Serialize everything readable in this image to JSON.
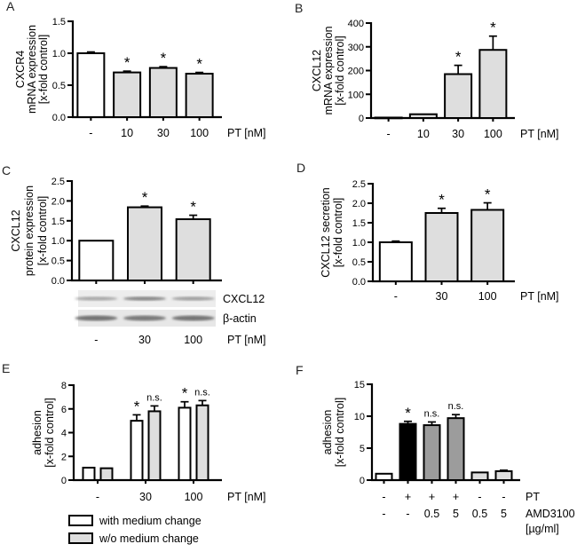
{
  "figure": {
    "panels": [
      {
        "letter": "A"
      },
      {
        "letter": "B"
      },
      {
        "letter": "C"
      },
      {
        "letter": "D"
      },
      {
        "letter": "E"
      },
      {
        "letter": "F"
      }
    ]
  },
  "colors": {
    "bar_white": "#ffffff",
    "bar_lightgray": "#dedede",
    "bar_midgray": "#9c9c9c",
    "bar_black": "#000000",
    "axis": "#000000"
  },
  "chart_data": [
    {
      "type": "bar",
      "panel": "A",
      "ylabel_lines": [
        "CXCR4",
        "mRNA expression",
        "[x-fold control]"
      ],
      "ylim": [
        0,
        1.5
      ],
      "yticks": [
        0,
        0.5,
        1.0,
        1.5
      ],
      "ytick_labels": [
        "0.0",
        "0.5",
        "1.0",
        "1.5"
      ],
      "categories": [
        "-",
        "10",
        "30",
        "100"
      ],
      "values": [
        1.0,
        0.7,
        0.77,
        0.68
      ],
      "errors": [
        0.02,
        0.02,
        0.02,
        0.02
      ],
      "colors": [
        "#ffffff",
        "#dedede",
        "#dedede",
        "#dedede"
      ],
      "annotations": [
        "",
        "*",
        "*",
        "*"
      ],
      "xlabel": "PT [nM]"
    },
    {
      "type": "bar",
      "panel": "B",
      "ylabel_lines": [
        "CXCL12",
        "mRNA expression",
        "[x-fold control]"
      ],
      "ylim": [
        0,
        400
      ],
      "yticks": [
        0,
        100,
        200,
        300,
        400
      ],
      "ytick_labels": [
        "0",
        "100",
        "200",
        "300",
        "400"
      ],
      "categories": [
        "-",
        "10",
        "30",
        "100"
      ],
      "values": [
        2,
        16,
        185,
        287
      ],
      "errors": [
        0,
        0,
        37,
        58
      ],
      "colors": [
        "#dedede",
        "#dedede",
        "#dedede",
        "#dedede"
      ],
      "annotations": [
        "",
        "",
        "*",
        "*"
      ],
      "xlabel": "PT [nM]"
    },
    {
      "type": "bar",
      "panel": "C",
      "ylabel_lines": [
        "CXCL12",
        "protein expression",
        "[x-fold control]"
      ],
      "ylim": [
        0,
        2.5
      ],
      "yticks": [
        0,
        0.5,
        1.0,
        1.5,
        2.0,
        2.5
      ],
      "ytick_labels": [
        "0.0",
        "0.5",
        "1.0",
        "1.5",
        "2.0",
        "2.5"
      ],
      "categories": [
        "-",
        "30",
        "100"
      ],
      "values": [
        1.0,
        1.84,
        1.54
      ],
      "errors": [
        0,
        0.03,
        0.1
      ],
      "colors": [
        "#ffffff",
        "#dedede",
        "#dedede"
      ],
      "annotations": [
        "",
        "*",
        "*"
      ],
      "xlabel": "PT [nM]",
      "blot": {
        "lanes": [
          "-",
          "30",
          "100"
        ],
        "rows": [
          {
            "label": "CXCL12",
            "band_intensity": [
              0.4,
              0.6,
              0.45
            ]
          },
          {
            "label": "β-actin",
            "band_intensity": [
              0.72,
              0.68,
              0.7
            ]
          }
        ]
      }
    },
    {
      "type": "bar",
      "panel": "D",
      "ylabel_lines": [
        "CXCL12 secretion",
        "[x-fold control]"
      ],
      "ylim": [
        0,
        2.5
      ],
      "yticks": [
        0,
        0.5,
        1.0,
        1.5,
        2.0,
        2.5
      ],
      "ytick_labels": [
        "0.0",
        "0.5",
        "1.0",
        "1.5",
        "2.0",
        "2.5"
      ],
      "categories": [
        "-",
        "30",
        "100"
      ],
      "values": [
        1.0,
        1.75,
        1.83
      ],
      "errors": [
        0.03,
        0.12,
        0.18
      ],
      "colors": [
        "#ffffff",
        "#dedede",
        "#dedede"
      ],
      "annotations": [
        "",
        "*",
        "*"
      ],
      "xlabel": "PT [nM]"
    },
    {
      "type": "grouped_bar",
      "panel": "E",
      "ylabel_lines": [
        "adhesion",
        "[x-fold control]"
      ],
      "ylim": [
        0,
        8
      ],
      "yticks": [
        0,
        2,
        4,
        6,
        8
      ],
      "ytick_labels": [
        "0",
        "2",
        "4",
        "6",
        "8"
      ],
      "categories": [
        "-",
        "30",
        "100"
      ],
      "series": [
        {
          "name": "with medium change",
          "color": "#ffffff",
          "values": [
            1.05,
            5.0,
            6.1
          ],
          "errors": [
            0,
            0.5,
            0.5
          ],
          "annotations": [
            "",
            "*",
            "*"
          ]
        },
        {
          "name": "w/o medium change",
          "color": "#dedede",
          "values": [
            1.0,
            5.8,
            6.3
          ],
          "errors": [
            0,
            0.45,
            0.4
          ],
          "annotations": [
            "",
            "n.s.",
            "n.s."
          ]
        }
      ],
      "legend": true,
      "xlabel": "PT [nM]"
    },
    {
      "type": "bar",
      "panel": "F",
      "ylabel_lines": [
        "adhesion",
        "[x-fold control]"
      ],
      "ylim": [
        0,
        15
      ],
      "yticks": [
        0,
        5,
        10,
        15
      ],
      "ytick_labels": [
        "0",
        "5",
        "10",
        "15"
      ],
      "values": [
        1.0,
        8.8,
        8.6,
        9.7,
        1.2,
        1.4
      ],
      "errors": [
        0,
        0.4,
        0.5,
        0.55,
        0,
        0.15
      ],
      "colors": [
        "#ffffff",
        "#000000",
        "#9c9c9c",
        "#9c9c9c",
        "#dedede",
        "#dedede"
      ],
      "annotations": [
        "",
        "*",
        "n.s.",
        "n.s.",
        "",
        ""
      ],
      "xrows": [
        {
          "label": "PT",
          "values": [
            "-",
            "+",
            "+",
            "+",
            "-",
            "-"
          ]
        },
        {
          "label": "AMD3100",
          "values": [
            "-",
            "-",
            "0.5",
            "5",
            "0.5",
            "5"
          ]
        }
      ],
      "xrow_unit": "[µg/ml]"
    }
  ]
}
